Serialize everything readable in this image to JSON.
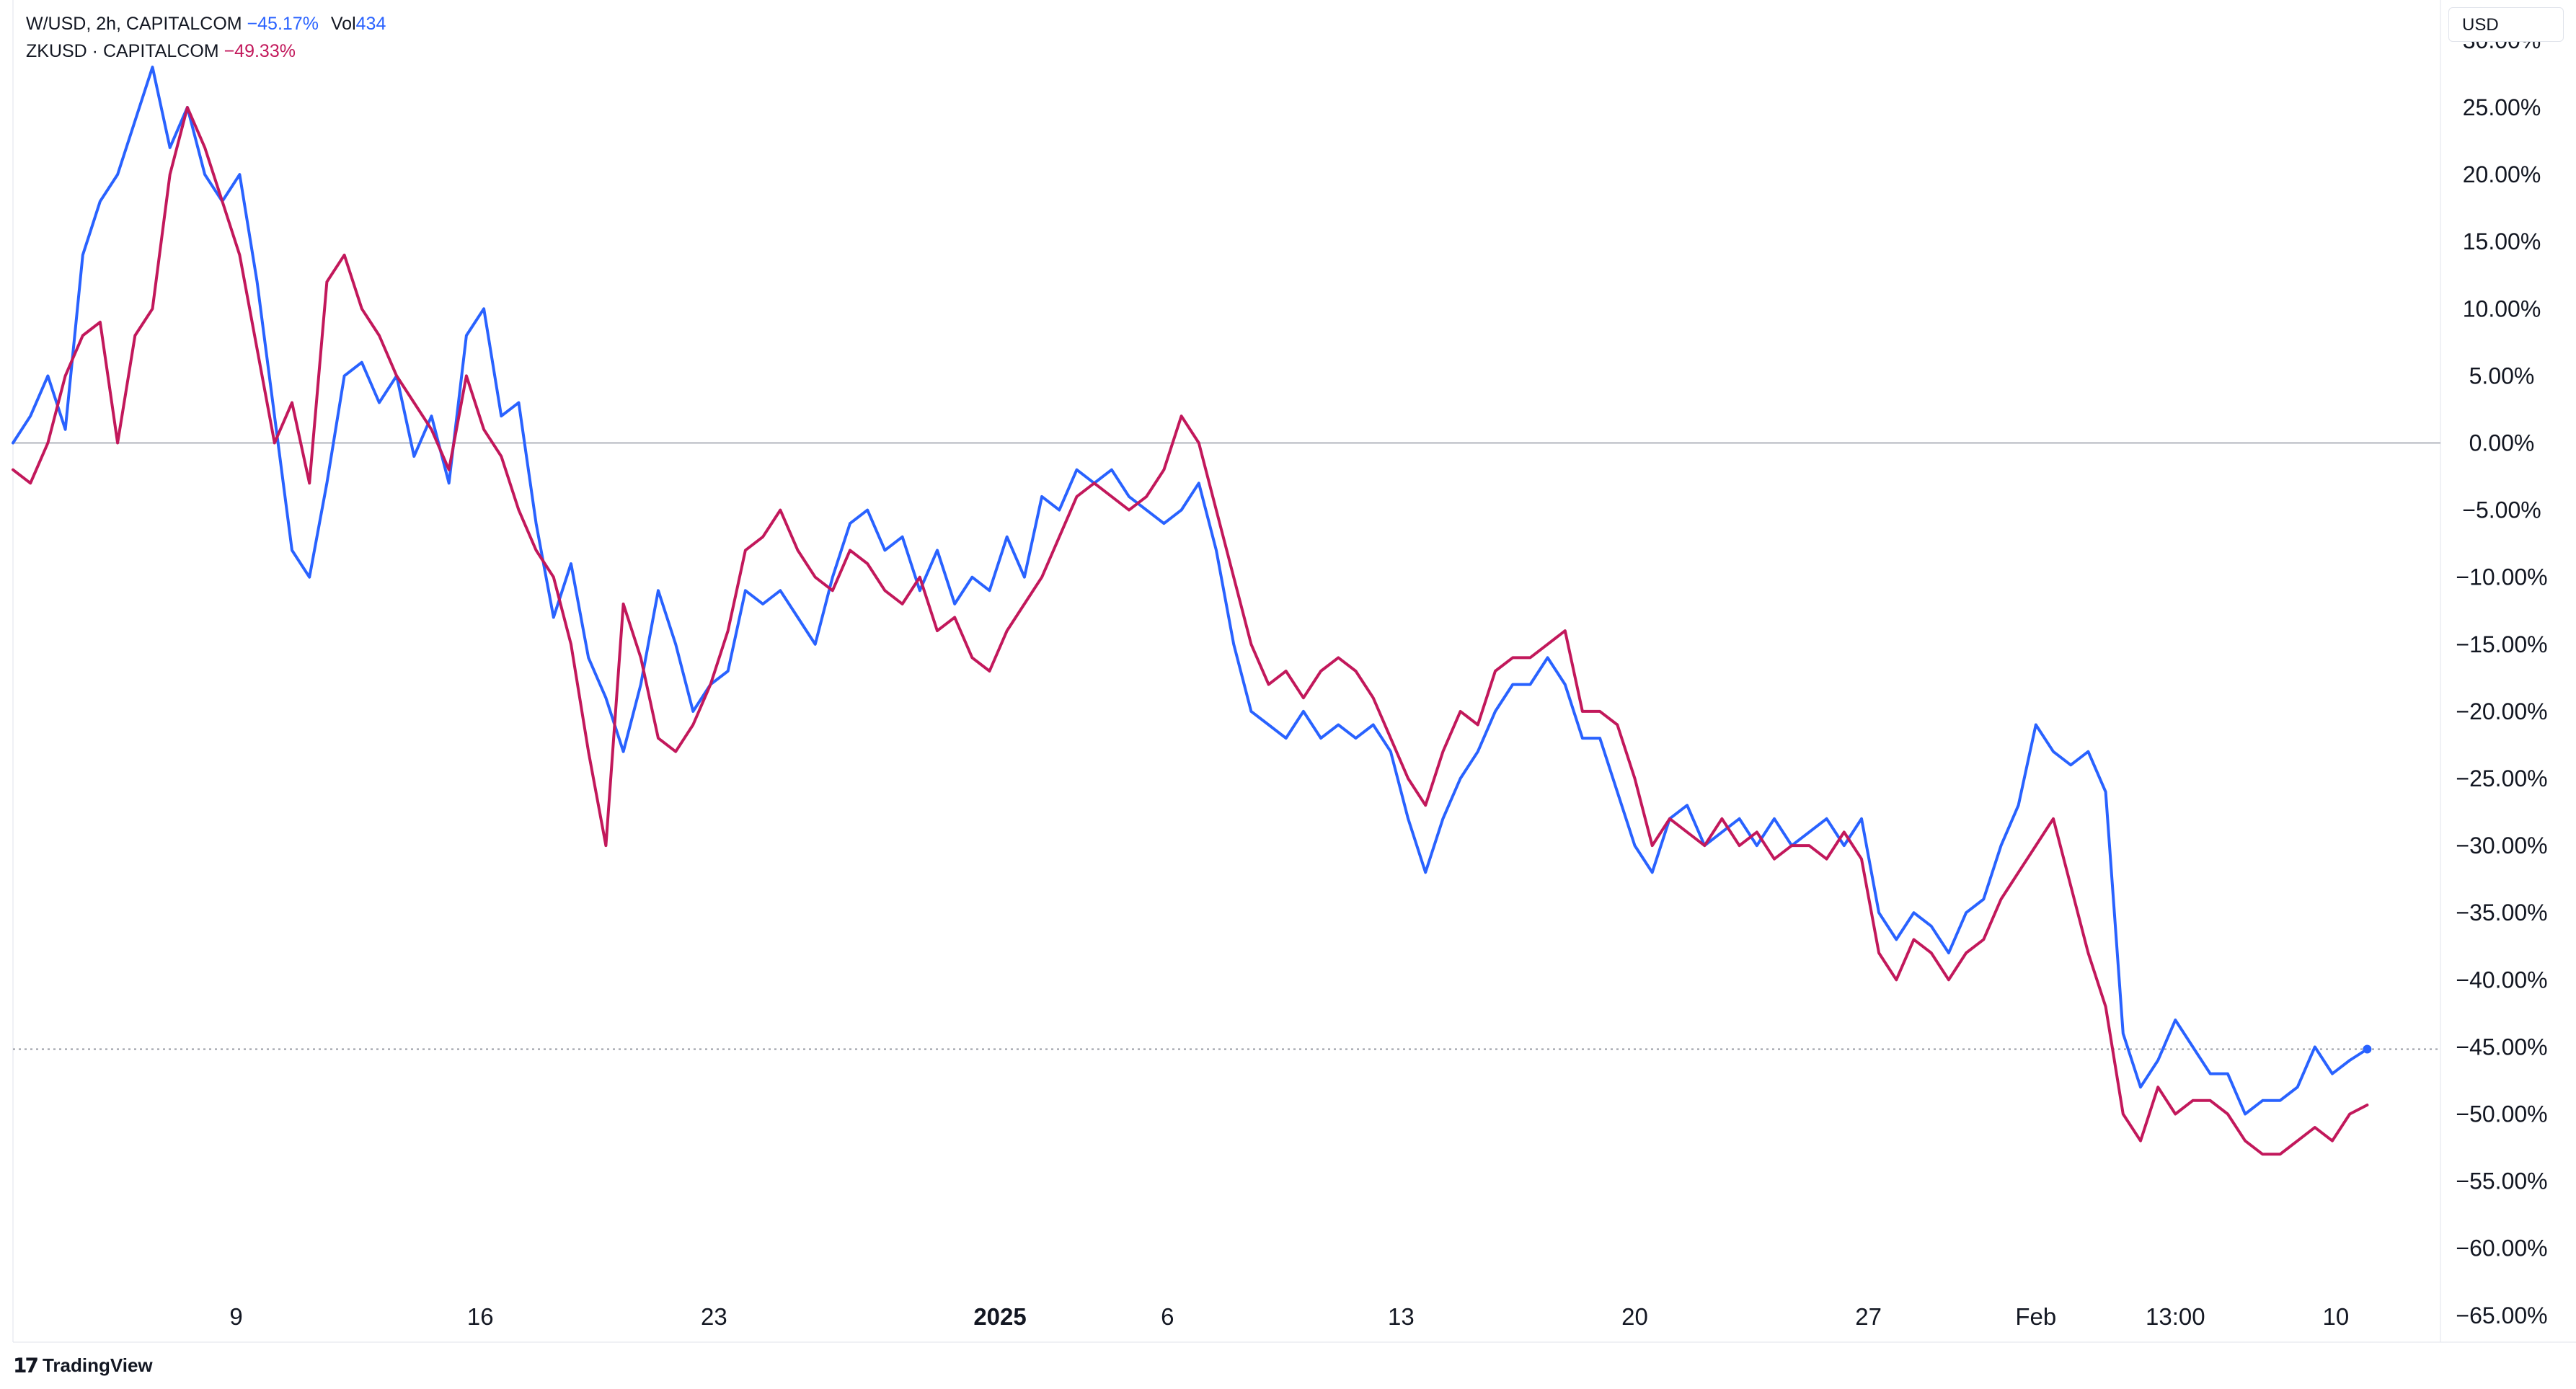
{
  "legend": {
    "series1_symbol": "W/USD, 2h, CAPITALCOM",
    "series1_change": "−45.17%",
    "series1_vol_label": "Vol",
    "series1_vol_value": "434",
    "series2_symbol": "ZKUSD · CAPITALCOM",
    "series2_change": "−49.33%"
  },
  "currency_button": "USD",
  "brand": "TradingView",
  "colors": {
    "series_blue": "#2962ff",
    "series_red": "#c2185b",
    "grid_zero": "#b2b5be",
    "last_value_line": "#9598a1"
  },
  "chart_data": {
    "type": "line",
    "xlabel": "",
    "ylabel": "",
    "y_unit": "%",
    "ylim": [
      -67,
      33
    ],
    "xlim": [
      0,
      69.6
    ],
    "y_ticks": [
      "30.00%",
      "25.00%",
      "20.00%",
      "15.00%",
      "10.00%",
      "5.00%",
      "0.00%",
      "−5.00%",
      "−10.00%",
      "−15.00%",
      "−20.00%",
      "−25.00%",
      "−30.00%",
      "−35.00%",
      "−40.00%",
      "−45.00%",
      "−50.00%",
      "−55.00%",
      "−60.00%",
      "−65.00%"
    ],
    "y_tick_values": [
      30,
      25,
      20,
      15,
      10,
      5,
      0,
      -5,
      -10,
      -15,
      -20,
      -25,
      -30,
      -35,
      -40,
      -45,
      -50,
      -55,
      -60,
      -65
    ],
    "x_ticks": [
      {
        "label": "9",
        "x": 6.4,
        "bold": false
      },
      {
        "label": "16",
        "x": 13.4,
        "bold": false
      },
      {
        "label": "23",
        "x": 20.1,
        "bold": false
      },
      {
        "label": "2025",
        "x": 28.3,
        "bold": true
      },
      {
        "label": "6",
        "x": 33.1,
        "bold": false
      },
      {
        "label": "13",
        "x": 39.8,
        "bold": false
      },
      {
        "label": "20",
        "x": 46.5,
        "bold": false
      },
      {
        "label": "27",
        "x": 53.2,
        "bold": false
      },
      {
        "label": "Feb",
        "x": 58.0,
        "bold": false
      },
      {
        "label": "13:00",
        "x": 62.0,
        "bold": false
      },
      {
        "label": "10",
        "x": 66.6,
        "bold": false
      }
    ],
    "reference_lines": [
      {
        "y": 0,
        "style": "solid"
      },
      {
        "y": -45.17,
        "style": "dotted"
      }
    ],
    "series": [
      {
        "name": "W/USD",
        "color": "#2962ff",
        "points": [
          [
            0,
            0
          ],
          [
            0.5,
            2
          ],
          [
            1,
            5
          ],
          [
            1.5,
            1
          ],
          [
            2,
            14
          ],
          [
            2.5,
            18
          ],
          [
            3,
            20
          ],
          [
            3.5,
            24
          ],
          [
            4,
            28
          ],
          [
            4.5,
            22
          ],
          [
            5,
            25
          ],
          [
            5.5,
            20
          ],
          [
            6,
            18
          ],
          [
            6.5,
            20
          ],
          [
            7,
            12
          ],
          [
            7.5,
            2
          ],
          [
            8,
            -8
          ],
          [
            8.5,
            -10
          ],
          [
            9,
            -3
          ],
          [
            9.5,
            5
          ],
          [
            10,
            6
          ],
          [
            10.5,
            3
          ],
          [
            11,
            5
          ],
          [
            11.5,
            -1
          ],
          [
            12,
            2
          ],
          [
            12.5,
            -3
          ],
          [
            13,
            8
          ],
          [
            13.5,
            10
          ],
          [
            14,
            2
          ],
          [
            14.5,
            3
          ],
          [
            15,
            -6
          ],
          [
            15.5,
            -13
          ],
          [
            16,
            -9
          ],
          [
            16.5,
            -16
          ],
          [
            17,
            -19
          ],
          [
            17.5,
            -23
          ],
          [
            18,
            -18
          ],
          [
            18.5,
            -11
          ],
          [
            19,
            -15
          ],
          [
            19.5,
            -20
          ],
          [
            20,
            -18
          ],
          [
            20.5,
            -17
          ],
          [
            21,
            -11
          ],
          [
            21.5,
            -12
          ],
          [
            22,
            -11
          ],
          [
            22.5,
            -13
          ],
          [
            23,
            -15
          ],
          [
            23.5,
            -10
          ],
          [
            24,
            -6
          ],
          [
            24.5,
            -5
          ],
          [
            25,
            -8
          ],
          [
            25.5,
            -7
          ],
          [
            26,
            -11
          ],
          [
            26.5,
            -8
          ],
          [
            27,
            -12
          ],
          [
            27.5,
            -10
          ],
          [
            28,
            -11
          ],
          [
            28.5,
            -7
          ],
          [
            29,
            -10
          ],
          [
            29.5,
            -4
          ],
          [
            30,
            -5
          ],
          [
            30.5,
            -2
          ],
          [
            31,
            -3
          ],
          [
            31.5,
            -2
          ],
          [
            32,
            -4
          ],
          [
            32.5,
            -5
          ],
          [
            33,
            -6
          ],
          [
            33.5,
            -5
          ],
          [
            34,
            -3
          ],
          [
            34.5,
            -8
          ],
          [
            35,
            -15
          ],
          [
            35.5,
            -20
          ],
          [
            36,
            -21
          ],
          [
            36.5,
            -22
          ],
          [
            37,
            -20
          ],
          [
            37.5,
            -22
          ],
          [
            38,
            -21
          ],
          [
            38.5,
            -22
          ],
          [
            39,
            -21
          ],
          [
            39.5,
            -23
          ],
          [
            40,
            -28
          ],
          [
            40.5,
            -32
          ],
          [
            41,
            -28
          ],
          [
            41.5,
            -25
          ],
          [
            42,
            -23
          ],
          [
            42.5,
            -20
          ],
          [
            43,
            -18
          ],
          [
            43.5,
            -18
          ],
          [
            44,
            -16
          ],
          [
            44.5,
            -18
          ],
          [
            45,
            -22
          ],
          [
            45.5,
            -22
          ],
          [
            46,
            -26
          ],
          [
            46.5,
            -30
          ],
          [
            47,
            -32
          ],
          [
            47.5,
            -28
          ],
          [
            48,
            -27
          ],
          [
            48.5,
            -30
          ],
          [
            49,
            -29
          ],
          [
            49.5,
            -28
          ],
          [
            50,
            -30
          ],
          [
            50.5,
            -28
          ],
          [
            51,
            -30
          ],
          [
            51.5,
            -29
          ],
          [
            52,
            -28
          ],
          [
            52.5,
            -30
          ],
          [
            53,
            -28
          ],
          [
            53.5,
            -35
          ],
          [
            54,
            -37
          ],
          [
            54.5,
            -35
          ],
          [
            55,
            -36
          ],
          [
            55.5,
            -38
          ],
          [
            56,
            -35
          ],
          [
            56.5,
            -34
          ],
          [
            57,
            -30
          ],
          [
            57.5,
            -27
          ],
          [
            58,
            -21
          ],
          [
            58.5,
            -23
          ],
          [
            59,
            -24
          ],
          [
            59.5,
            -23
          ],
          [
            60,
            -26
          ],
          [
            60.5,
            -44
          ],
          [
            61,
            -48
          ],
          [
            61.5,
            -46
          ],
          [
            62,
            -43
          ],
          [
            62.5,
            -45
          ],
          [
            63,
            -47
          ],
          [
            63.5,
            -47
          ],
          [
            64,
            -50
          ],
          [
            64.5,
            -49
          ],
          [
            65,
            -49
          ],
          [
            65.5,
            -48
          ],
          [
            66,
            -45
          ],
          [
            66.5,
            -47
          ],
          [
            67,
            -46
          ],
          [
            67.5,
            -45.17
          ]
        ]
      },
      {
        "name": "ZKUSD",
        "color": "#c2185b",
        "points": [
          [
            0,
            -2
          ],
          [
            0.5,
            -3
          ],
          [
            1,
            0
          ],
          [
            1.5,
            5
          ],
          [
            2,
            8
          ],
          [
            2.5,
            9
          ],
          [
            3,
            0
          ],
          [
            3.5,
            8
          ],
          [
            4,
            10
          ],
          [
            4.5,
            20
          ],
          [
            5,
            25
          ],
          [
            5.5,
            22
          ],
          [
            6,
            18
          ],
          [
            6.5,
            14
          ],
          [
            7,
            7
          ],
          [
            7.5,
            0
          ],
          [
            8,
            3
          ],
          [
            8.5,
            -3
          ],
          [
            9,
            12
          ],
          [
            9.5,
            14
          ],
          [
            10,
            10
          ],
          [
            10.5,
            8
          ],
          [
            11,
            5
          ],
          [
            11.5,
            3
          ],
          [
            12,
            1
          ],
          [
            12.5,
            -2
          ],
          [
            13,
            5
          ],
          [
            13.5,
            1
          ],
          [
            14,
            -1
          ],
          [
            14.5,
            -5
          ],
          [
            15,
            -8
          ],
          [
            15.5,
            -10
          ],
          [
            16,
            -15
          ],
          [
            16.5,
            -23
          ],
          [
            17,
            -30
          ],
          [
            17.5,
            -12
          ],
          [
            18,
            -16
          ],
          [
            18.5,
            -22
          ],
          [
            19,
            -23
          ],
          [
            19.5,
            -21
          ],
          [
            20,
            -18
          ],
          [
            20.5,
            -14
          ],
          [
            21,
            -8
          ],
          [
            21.5,
            -7
          ],
          [
            22,
            -5
          ],
          [
            22.5,
            -8
          ],
          [
            23,
            -10
          ],
          [
            23.5,
            -11
          ],
          [
            24,
            -8
          ],
          [
            24.5,
            -9
          ],
          [
            25,
            -11
          ],
          [
            25.5,
            -12
          ],
          [
            26,
            -10
          ],
          [
            26.5,
            -14
          ],
          [
            27,
            -13
          ],
          [
            27.5,
            -16
          ],
          [
            28,
            -17
          ],
          [
            28.5,
            -14
          ],
          [
            29,
            -12
          ],
          [
            29.5,
            -10
          ],
          [
            30,
            -7
          ],
          [
            30.5,
            -4
          ],
          [
            31,
            -3
          ],
          [
            31.5,
            -4
          ],
          [
            32,
            -5
          ],
          [
            32.5,
            -4
          ],
          [
            33,
            -2
          ],
          [
            33.5,
            2
          ],
          [
            34,
            0
          ],
          [
            34.5,
            -5
          ],
          [
            35,
            -10
          ],
          [
            35.5,
            -15
          ],
          [
            36,
            -18
          ],
          [
            36.5,
            -17
          ],
          [
            37,
            -19
          ],
          [
            37.5,
            -17
          ],
          [
            38,
            -16
          ],
          [
            38.5,
            -17
          ],
          [
            39,
            -19
          ],
          [
            39.5,
            -22
          ],
          [
            40,
            -25
          ],
          [
            40.5,
            -27
          ],
          [
            41,
            -23
          ],
          [
            41.5,
            -20
          ],
          [
            42,
            -21
          ],
          [
            42.5,
            -17
          ],
          [
            43,
            -16
          ],
          [
            43.5,
            -16
          ],
          [
            44,
            -15
          ],
          [
            44.5,
            -14
          ],
          [
            45,
            -20
          ],
          [
            45.5,
            -20
          ],
          [
            46,
            -21
          ],
          [
            46.5,
            -25
          ],
          [
            47,
            -30
          ],
          [
            47.5,
            -28
          ],
          [
            48,
            -29
          ],
          [
            48.5,
            -30
          ],
          [
            49,
            -28
          ],
          [
            49.5,
            -30
          ],
          [
            50,
            -29
          ],
          [
            50.5,
            -31
          ],
          [
            51,
            -30
          ],
          [
            51.5,
            -30
          ],
          [
            52,
            -31
          ],
          [
            52.5,
            -29
          ],
          [
            53,
            -31
          ],
          [
            53.5,
            -38
          ],
          [
            54,
            -40
          ],
          [
            54.5,
            -37
          ],
          [
            55,
            -38
          ],
          [
            55.5,
            -40
          ],
          [
            56,
            -38
          ],
          [
            56.5,
            -37
          ],
          [
            57,
            -34
          ],
          [
            57.5,
            -32
          ],
          [
            58,
            -30
          ],
          [
            58.5,
            -28
          ],
          [
            59,
            -33
          ],
          [
            59.5,
            -38
          ],
          [
            60,
            -42
          ],
          [
            60.5,
            -50
          ],
          [
            61,
            -52
          ],
          [
            61.5,
            -48
          ],
          [
            62,
            -50
          ],
          [
            62.5,
            -49
          ],
          [
            63,
            -49
          ],
          [
            63.5,
            -50
          ],
          [
            64,
            -52
          ],
          [
            64.5,
            -53
          ],
          [
            65,
            -53
          ],
          [
            65.5,
            -52
          ],
          [
            66,
            -51
          ],
          [
            66.5,
            -52
          ],
          [
            67,
            -50
          ],
          [
            67.5,
            -49.33
          ]
        ]
      }
    ]
  }
}
